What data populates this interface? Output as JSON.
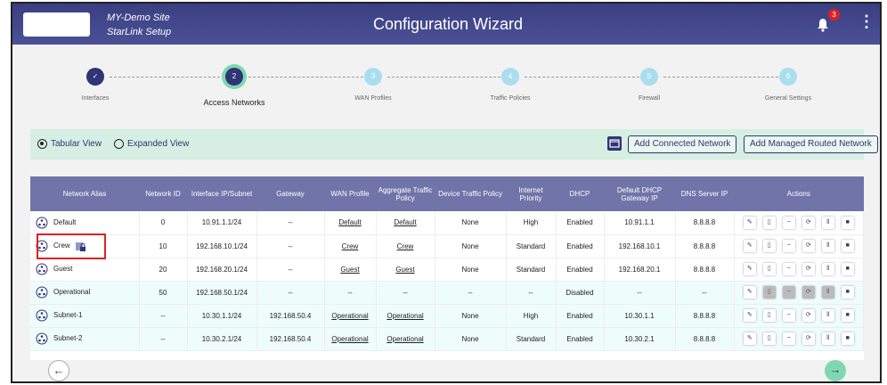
{
  "header": {
    "site_name": "MY-Demo Site",
    "site_sub": "StarLink Setup",
    "title": "Configuration Wizard",
    "notification_count": "3",
    "icons": [
      "bell-icon",
      "kebab-menu-icon"
    ]
  },
  "steps": [
    {
      "num": "✓",
      "label": "Interfaces",
      "state": "done"
    },
    {
      "num": "2",
      "label": "Access Networks",
      "state": "active"
    },
    {
      "num": "3",
      "label": "WAN Profiles",
      "state": "todo"
    },
    {
      "num": "4",
      "label": "Traffic Policies",
      "state": "todo"
    },
    {
      "num": "5",
      "label": "Firewall",
      "state": "todo"
    },
    {
      "num": "6",
      "label": "General Settings",
      "state": "todo"
    }
  ],
  "toolbar": {
    "tabular": "Tabular View",
    "expanded": "Expanded View",
    "selected": "Tabular View",
    "add_connected": "Add Connected Network",
    "add_managed": "Add Managed Routed Network"
  },
  "table": {
    "headers": [
      "Network Alias",
      "Network ID",
      "Interface IP/Subnet",
      "Gateway",
      "WAN Profile",
      "Aggregate Traffic Policy",
      "Device Traffic Policy",
      "Internet Priority",
      "DHCP",
      "Default DHCP Gateway IP",
      "DNS Server IP",
      "Actions"
    ],
    "rows": [
      {
        "alias": "Default",
        "id": "0",
        "ip": "10.91.1.1/24",
        "gw": "--",
        "wan": "Default",
        "agg": "Default",
        "dev": "None",
        "prio": "High",
        "dhcp": "Enabled",
        "dgw": "10.91.1.1",
        "dns": "8.8.8.8"
      },
      {
        "alias": "Crew",
        "id": "10",
        "ip": "192.168.10.1/24",
        "gw": "--",
        "wan": "Crew",
        "agg": "Crew",
        "dev": "None",
        "prio": "Standard",
        "dhcp": "Enabled",
        "dgw": "192.168.10.1",
        "dns": "8.8.8.8"
      },
      {
        "alias": "Guest",
        "id": "20",
        "ip": "192.168.20.1/24",
        "gw": "--",
        "wan": "Guest",
        "agg": "Guest",
        "dev": "None",
        "prio": "Standard",
        "dhcp": "Enabled",
        "dgw": "192.168.20.1",
        "dns": "8.8.8.8"
      },
      {
        "alias": "Operational",
        "id": "50",
        "ip": "192.168.50.1/24",
        "gw": "--",
        "wan": "--",
        "agg": "--",
        "dev": "--",
        "prio": "--",
        "dhcp": "Disabled",
        "dgw": "--",
        "dns": "--"
      },
      {
        "alias": "Subnet-1",
        "id": "--",
        "ip": "10.30.1.1/24",
        "gw": "192.168.50.4",
        "wan": "Operational",
        "agg": "Operational",
        "dev": "None",
        "prio": "High",
        "dhcp": "Enabled",
        "dgw": "10.30.1.1",
        "dns": "8.8.8.8"
      },
      {
        "alias": "Subnet-2",
        "id": "--",
        "ip": "10.30.2.1/24",
        "gw": "192.168.50.4",
        "wan": "Operational",
        "agg": "Operational",
        "dev": "None",
        "prio": "Standard",
        "dhcp": "Enabled",
        "dgw": "10.30.2.1",
        "dns": "8.8.8.8"
      }
    ]
  },
  "colors": {
    "header": "#3d4385",
    "accent": "#7fd8b0",
    "table_header": "#7074a8",
    "highlight": "#e02020"
  }
}
